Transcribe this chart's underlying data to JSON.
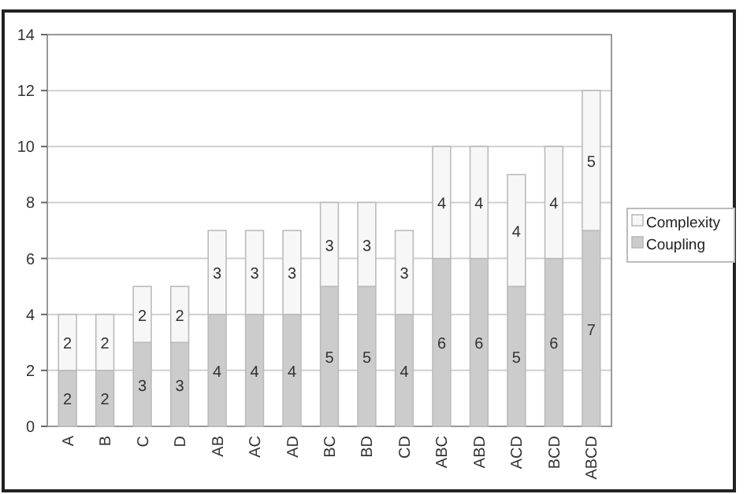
{
  "chart_data": {
    "type": "bar",
    "stacked": true,
    "categories": [
      "A",
      "B",
      "C",
      "D",
      "AB",
      "AC",
      "AD",
      "BC",
      "BD",
      "CD",
      "ABC",
      "ABD",
      "ACD",
      "BCD",
      "ABCD"
    ],
    "series": [
      {
        "name": "Coupling",
        "color": "#cccccc",
        "values": [
          2,
          2,
          3,
          3,
          4,
          4,
          4,
          5,
          5,
          4,
          6,
          6,
          5,
          6,
          7
        ]
      },
      {
        "name": "Complexity",
        "color": "#f7f7f7",
        "values": [
          2,
          2,
          2,
          2,
          3,
          3,
          3,
          3,
          3,
          3,
          4,
          4,
          4,
          4,
          5
        ]
      }
    ],
    "ylim": [
      0,
      14
    ],
    "yticks": [
      0,
      2,
      4,
      6,
      8,
      10,
      12,
      14
    ],
    "grid": "y",
    "legend": "right",
    "data_labels": true
  }
}
